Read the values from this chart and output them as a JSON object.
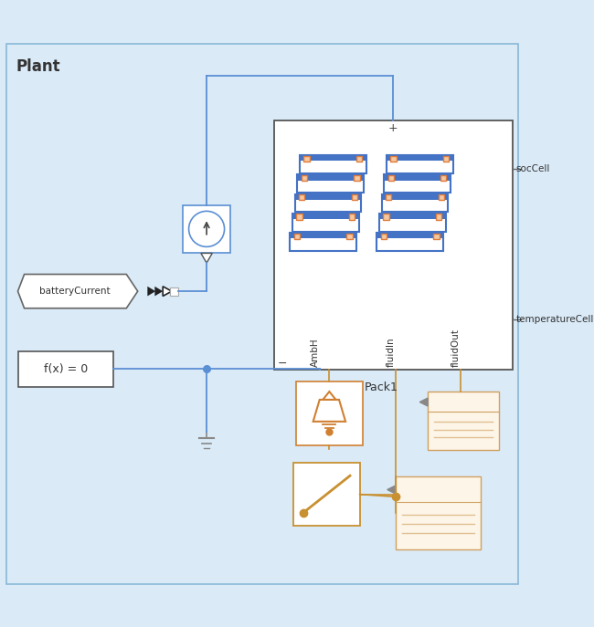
{
  "bg_color": "#daeaf7",
  "plant_label": "Plant",
  "pack_label": "Pack1",
  "pack_inner_labels": [
    "AmbH",
    "fluidIn",
    "fluidOut"
  ],
  "pack_right_labels": [
    "socCell",
    "temperatureCell"
  ],
  "current_source_label": "batteryCurrent",
  "fcn_label": "f(x) = 0",
  "cell_color": "#4472c4",
  "connector_color": "#e07b39",
  "blue_line": "#5b8fd4",
  "orange_line": "#c89030",
  "gray_line": "#888888",
  "fig_width": 6.5,
  "fig_height": 6.87
}
